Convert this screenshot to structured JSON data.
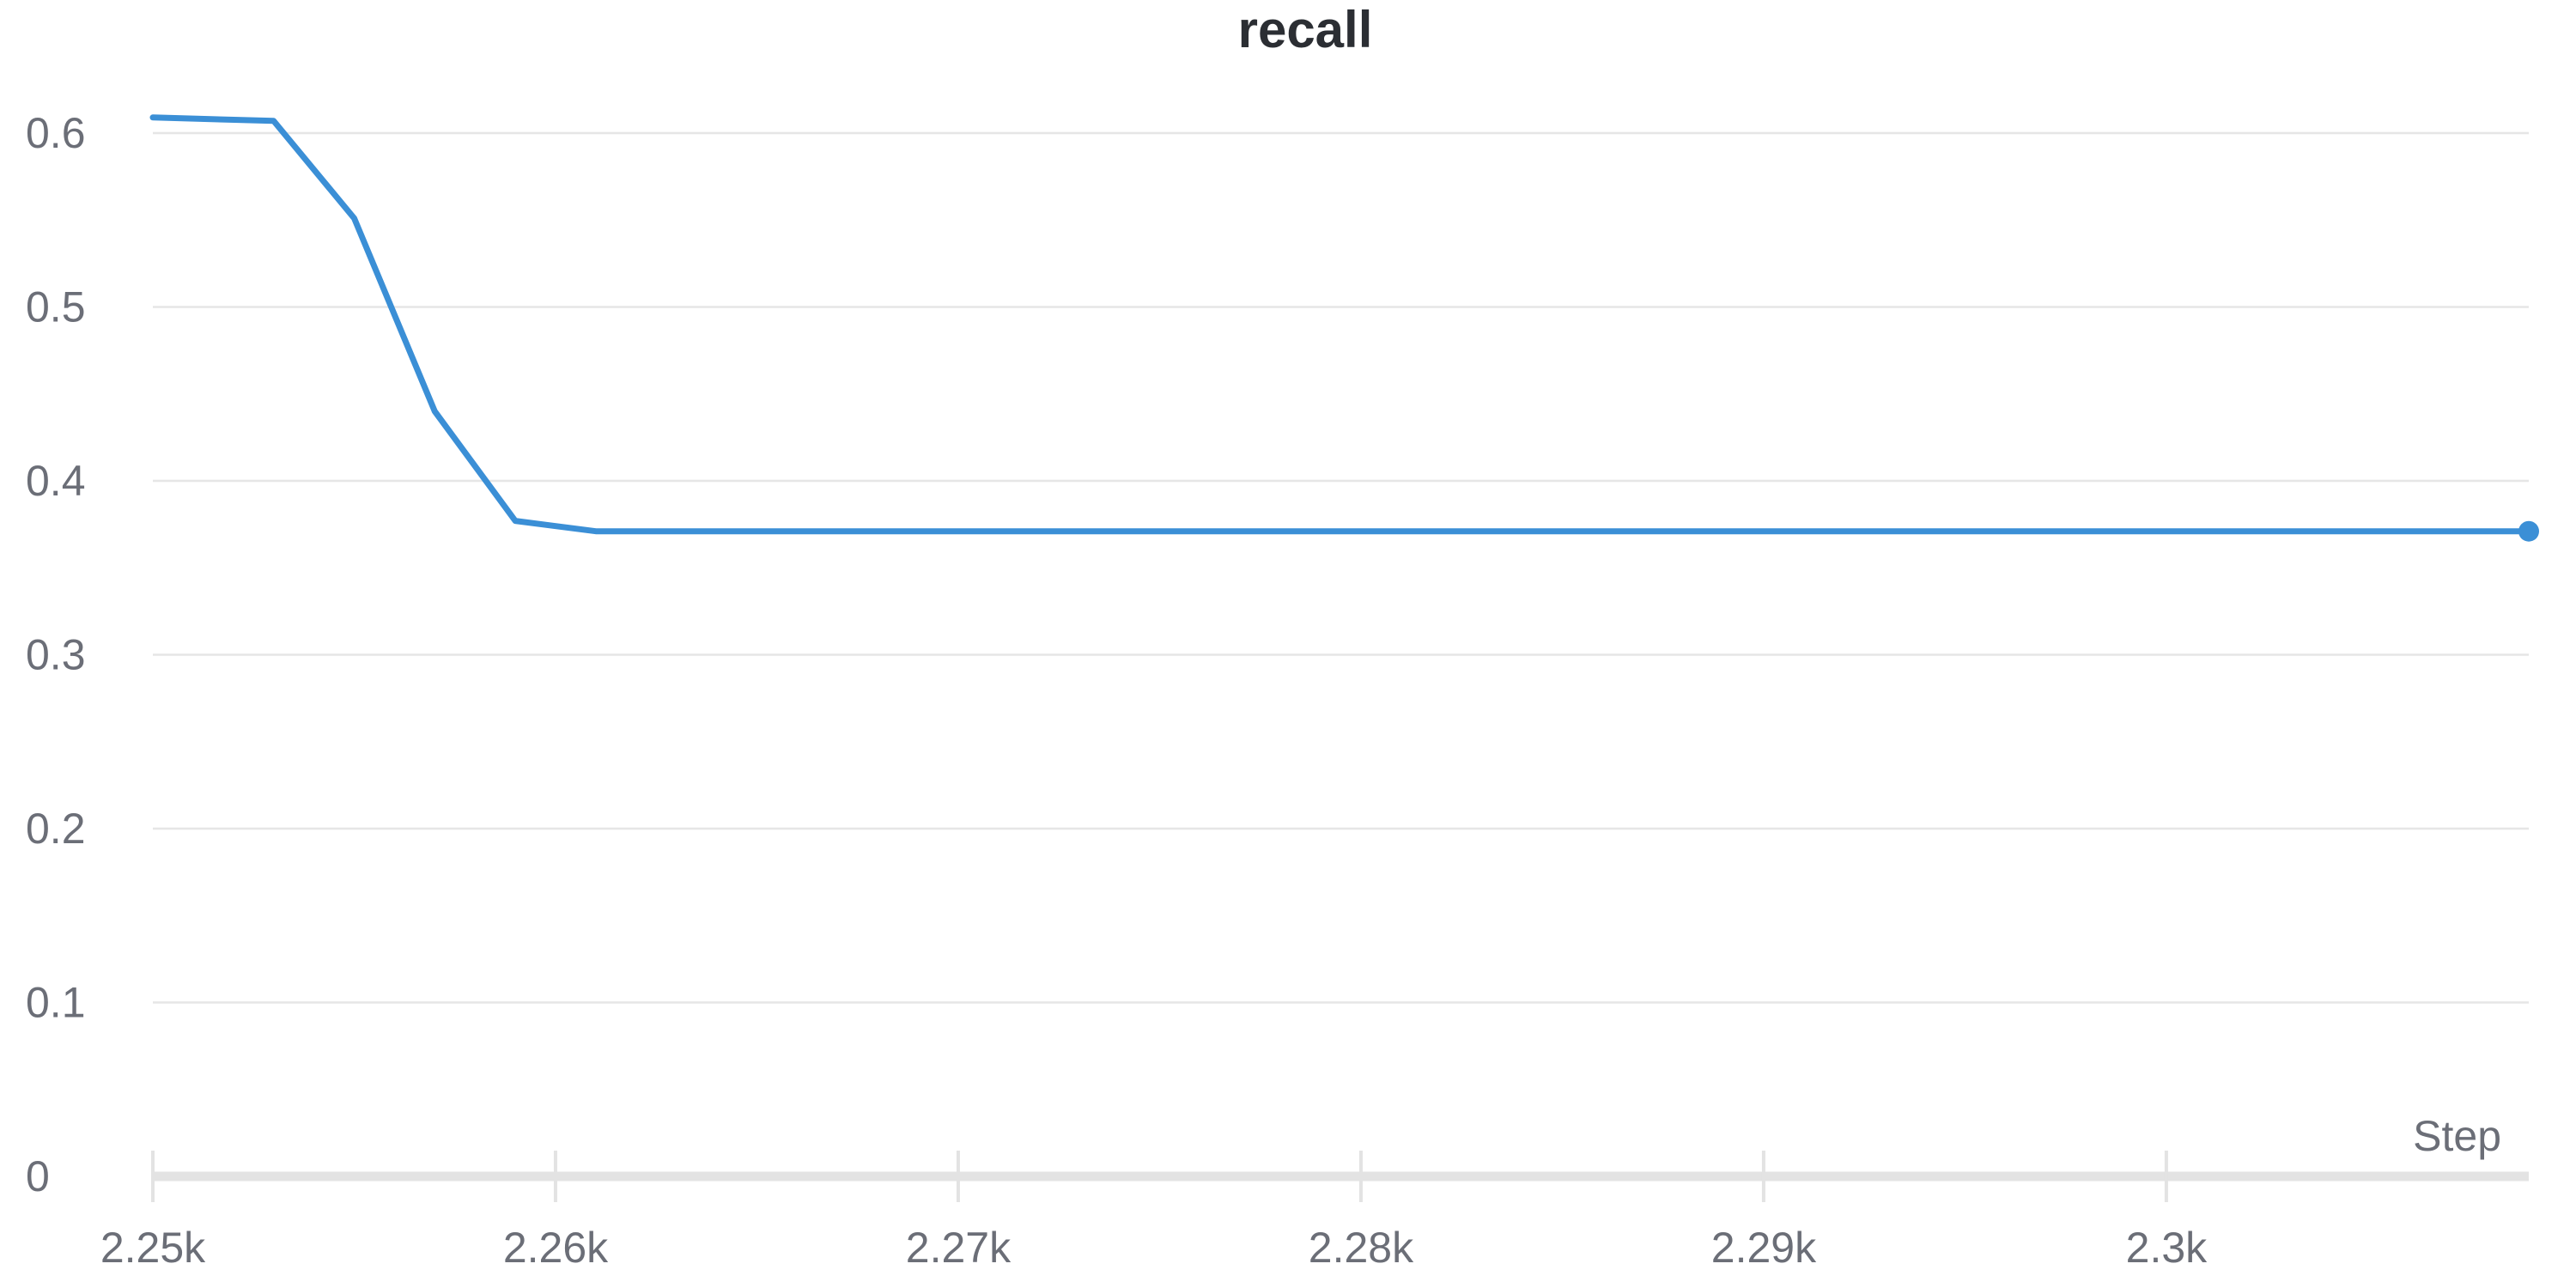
{
  "chart_data": {
    "type": "line",
    "title": "recall",
    "xlabel": "Step",
    "ylabel": "",
    "xlim": [
      2250,
      2309
    ],
    "ylim": [
      0,
      0.6
    ],
    "x_ticks": [
      {
        "value": 2250,
        "label": "2.25k"
      },
      {
        "value": 2260,
        "label": "2.26k"
      },
      {
        "value": 2270,
        "label": "2.27k"
      },
      {
        "value": 2280,
        "label": "2.28k"
      },
      {
        "value": 2290,
        "label": "2.29k"
      },
      {
        "value": 2300,
        "label": "2.3k"
      }
    ],
    "y_ticks": [
      {
        "value": 0,
        "label": "0"
      },
      {
        "value": 0.1,
        "label": "0.1"
      },
      {
        "value": 0.2,
        "label": "0.2"
      },
      {
        "value": 0.3,
        "label": "0.3"
      },
      {
        "value": 0.4,
        "label": "0.4"
      },
      {
        "value": 0.5,
        "label": "0.5"
      },
      {
        "value": 0.6,
        "label": "0.6"
      }
    ],
    "grid": true,
    "legend": "none",
    "series": [
      {
        "color": "#3b8fd6",
        "x": [
          2250,
          2253,
          2255,
          2257,
          2259,
          2261,
          2263,
          2265,
          2267,
          2269,
          2271,
          2273,
          2275,
          2277,
          2279,
          2281,
          2283,
          2285,
          2287,
          2289,
          2291,
          2293,
          2295,
          2297,
          2299,
          2301,
          2303,
          2305,
          2307,
          2309
        ],
        "values": [
          0.609,
          0.607,
          0.551,
          0.44,
          0.377,
          0.371,
          0.371,
          0.371,
          0.371,
          0.371,
          0.371,
          0.371,
          0.371,
          0.371,
          0.371,
          0.371,
          0.371,
          0.371,
          0.371,
          0.371,
          0.371,
          0.371,
          0.371,
          0.371,
          0.371,
          0.371,
          0.371,
          0.371,
          0.371,
          0.371
        ]
      }
    ]
  }
}
